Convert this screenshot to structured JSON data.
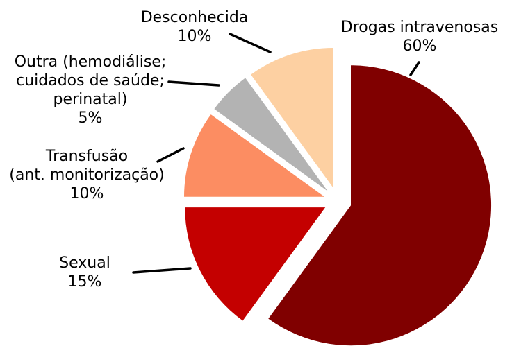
{
  "figure": {
    "background_color": "#ffffff",
    "text_color": "#000000",
    "leader_line_color": "#000000"
  },
  "chart_data": {
    "type": "pie",
    "title": "",
    "start_angle_deg": 90,
    "direction": "clockwise",
    "exploded": true,
    "legend": "none (direct slice labels with leader lines)",
    "slices": [
      {
        "id": "drogas-intravenosas",
        "label": "Drogas intravenosas",
        "percent": 60,
        "percent_label": "60%",
        "color": "#800000",
        "label_lines": [
          "Drogas intravenosas",
          "60%"
        ]
      },
      {
        "id": "sexual",
        "label": "Sexual",
        "percent": 15,
        "percent_label": "15%",
        "color": "#C40000",
        "label_lines": [
          "Sexual",
          "15%"
        ]
      },
      {
        "id": "transfusao",
        "label": "Transfusão (ant. monitorização)",
        "percent": 10,
        "percent_label": "10%",
        "color": "#FC8D62",
        "label_lines": [
          "Transfusão",
          "(ant. monitorização)",
          "10%"
        ]
      },
      {
        "id": "outra",
        "label": "Outra (hemodiálise; cuidados de saúde; perinatal)",
        "percent": 5,
        "percent_label": "5%",
        "color": "#B3B3B3",
        "label_lines": [
          "Outra (hemodiálise;",
          "cuidados de saúde;",
          "perinatal)",
          "5%"
        ]
      },
      {
        "id": "desconhecida",
        "label": "Desconhecida",
        "percent": 10,
        "percent_label": "10%",
        "color": "#FDD0A2",
        "label_lines": [
          "Desconhecida",
          "10%"
        ]
      }
    ]
  }
}
